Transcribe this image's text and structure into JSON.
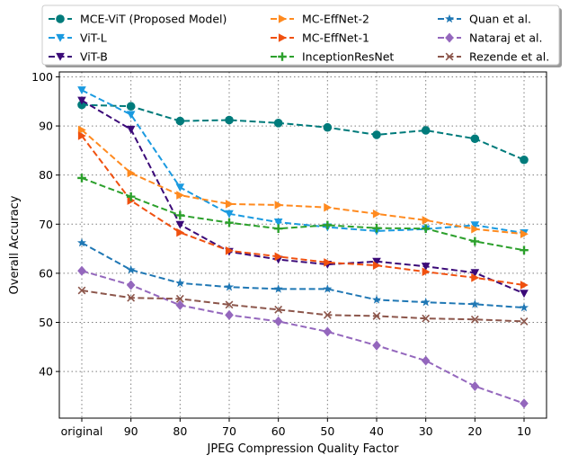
{
  "chart_data": {
    "type": "line",
    "title": "",
    "xlabel": "JPEG Compression Quality Factor",
    "ylabel": "Overall Accuracy",
    "categories": [
      "original",
      "90",
      "80",
      "70",
      "60",
      "50",
      "40",
      "30",
      "20",
      "10"
    ],
    "ylim": [
      30.5,
      101
    ],
    "yticks": [
      40,
      50,
      60,
      70,
      80,
      90,
      100
    ],
    "grid": true,
    "legend": {
      "placement": "top",
      "columns": 3
    },
    "series": [
      {
        "name": "MCE-ViT (Proposed Model)",
        "color": "#007b7b",
        "marker": "circle",
        "values": [
          94.3,
          94.0,
          91.0,
          91.2,
          90.6,
          89.7,
          88.2,
          89.1,
          87.4,
          83.1
        ]
      },
      {
        "name": "ViT-L",
        "color": "#1a9ae0",
        "marker": "triangle-down",
        "values": [
          97.3,
          92.3,
          77.5,
          72.1,
          70.4,
          69.4,
          68.6,
          69.0,
          69.8,
          68.2
        ]
      },
      {
        "name": "ViT-B",
        "color": "#3b0a78",
        "marker": "triangle-down",
        "values": [
          95.2,
          89.3,
          69.9,
          64.4,
          62.8,
          61.8,
          62.4,
          61.4,
          60.1,
          55.9
        ]
      },
      {
        "name": "MC-EffNet-2",
        "color": "#ff8a1f",
        "marker": "triangle-right",
        "values": [
          89.2,
          80.4,
          75.9,
          74.1,
          73.9,
          73.4,
          72.1,
          70.8,
          69.0,
          68.0
        ]
      },
      {
        "name": "MC-EffNet-1",
        "color": "#f0500f",
        "marker": "triangle-right",
        "values": [
          88.0,
          74.8,
          68.3,
          64.6,
          63.4,
          62.2,
          61.6,
          60.3,
          59.1,
          57.6
        ]
      },
      {
        "name": "InceptionResNet",
        "color": "#2ca02c",
        "marker": "plus",
        "values": [
          79.4,
          75.6,
          71.8,
          70.3,
          69.1,
          69.8,
          69.2,
          69.1,
          66.5,
          64.7
        ]
      },
      {
        "name": "Quan et al.",
        "color": "#1f77b4",
        "marker": "star",
        "values": [
          66.2,
          60.7,
          58.0,
          57.2,
          56.8,
          56.8,
          54.6,
          54.1,
          53.7,
          53.0
        ]
      },
      {
        "name": "Nataraj et al.",
        "color": "#9467bd",
        "marker": "diamond",
        "values": [
          60.5,
          57.6,
          53.5,
          51.5,
          50.2,
          48.1,
          45.3,
          42.2,
          37.0,
          33.5
        ]
      },
      {
        "name": "Rezende et al.",
        "color": "#8c564b",
        "marker": "x",
        "values": [
          56.5,
          55.0,
          54.8,
          53.6,
          52.6,
          51.5,
          51.3,
          50.8,
          50.6,
          50.2
        ]
      }
    ]
  }
}
